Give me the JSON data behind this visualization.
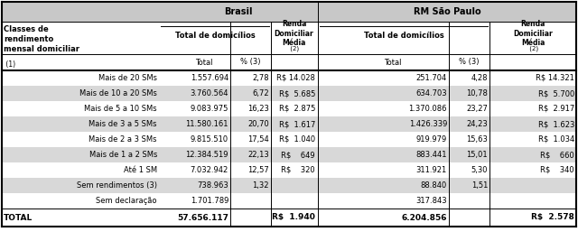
{
  "rows": [
    [
      "Mais de 20 SMs",
      "1.557.694",
      "2,78",
      "R$ 14.028",
      "251.704",
      "4,28",
      "R$ 14.321"
    ],
    [
      "Mais de 10 a 20 SMs",
      "3.760.564",
      "6,72",
      "R$  5.685",
      "634.703",
      "10,78",
      "R$  5.700"
    ],
    [
      "Mais de 5 a 10 SMs",
      "9.083.975",
      "16,23",
      "R$  2.875",
      "1.370.086",
      "23,27",
      "R$  2.917"
    ],
    [
      "Mais de 3 a 5 SMs",
      "11.580.161",
      "20,70",
      "R$  1.617",
      "1.426.339",
      "24,23",
      "R$  1.623"
    ],
    [
      "Mais de 2 a 3 SMs",
      "9.815.510",
      "17,54",
      "R$  1.040",
      "919.979",
      "15,63",
      "R$  1.034"
    ],
    [
      "Mais de 1 a 2 SMs",
      "12.384.519",
      "22,13",
      "R$    649",
      "883.441",
      "15,01",
      "R$    660"
    ],
    [
      "Até 1 SM",
      "7.032.942",
      "12,57",
      "R$    320",
      "311.921",
      "5,30",
      "R$    340"
    ],
    [
      "Sem rendimentos (3)",
      "738.963",
      "1,32",
      "",
      "88.840",
      "1,51",
      ""
    ],
    [
      "Sem declaração",
      "1.701.789",
      "",
      "",
      "317.843",
      "",
      ""
    ]
  ],
  "total_row": [
    "TOTAL",
    "57.656.117",
    "",
    "R$  1.940",
    "6.204.856",
    "",
    "R$  2.578"
  ],
  "shaded_rows": [
    1,
    3,
    5,
    7
  ],
  "shade_color": "#d8d8d8",
  "header_bg": "#c8c8c8",
  "line_color": "#000000",
  "text_color": "#000000",
  "figsize": [
    6.4,
    2.67
  ],
  "dpi": 100
}
